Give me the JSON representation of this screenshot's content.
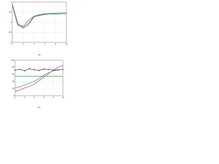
{
  "chart_data": [
    {
      "type": "line",
      "caption": "(a)",
      "x": [
        0,
        1,
        2,
        3,
        4,
        5,
        6,
        7,
        8,
        9,
        10
      ],
      "xlim": [
        0,
        10
      ],
      "xticks": [
        0,
        2,
        4,
        6,
        8,
        10
      ],
      "ylim": [
        -1,
        1
      ],
      "yticks": [
        -1,
        -0.5,
        0,
        0.5,
        1
      ],
      "grid": true,
      "series": [
        {
          "color": "#2ca02c",
          "values": [
            0.9,
            -0.05,
            -0.25,
            -0.05,
            0.3,
            0.38,
            0.42,
            0.44,
            0.45,
            0.46,
            0.47
          ]
        },
        {
          "color": "#d62728",
          "values": [
            0.88,
            -0.1,
            -0.3,
            -0.12,
            0.25,
            0.34,
            0.38,
            0.4,
            0.41,
            0.42,
            0.42
          ]
        },
        {
          "color": "#1f77b4",
          "values": [
            0.85,
            -0.15,
            -0.2,
            0.1,
            0.3,
            0.36,
            0.39,
            0.4,
            0.41,
            0.42,
            0.42
          ]
        }
      ]
    },
    {
      "type": "line",
      "caption": "(b)",
      "x": [
        0,
        1,
        2,
        3,
        4,
        5,
        6,
        7,
        8,
        9,
        10
      ],
      "xlim": [
        0,
        10
      ],
      "xticks": [
        0,
        2,
        4,
        6,
        8,
        10
      ],
      "ylim": [
        0,
        100
      ],
      "yticks": [
        0,
        20,
        40,
        60,
        80,
        100
      ],
      "grid": true,
      "series": [
        {
          "color": "#333333",
          "markers": true,
          "values": [
            72,
            74,
            70,
            76,
            73,
            71,
            75,
            74,
            72,
            73,
            74
          ]
        },
        {
          "color": "#d62728",
          "values": [
            12,
            16,
            22,
            26,
            32,
            42,
            52,
            62,
            72,
            80,
            85
          ]
        },
        {
          "color": "#1f77b4",
          "values": [
            22,
            25,
            30,
            35,
            40,
            48,
            58,
            64,
            70,
            72,
            74
          ]
        },
        {
          "color": "#2ca02c",
          "values": [
            55,
            55,
            55,
            55,
            55,
            55,
            55,
            55,
            55,
            55,
            55
          ]
        }
      ]
    }
  ]
}
